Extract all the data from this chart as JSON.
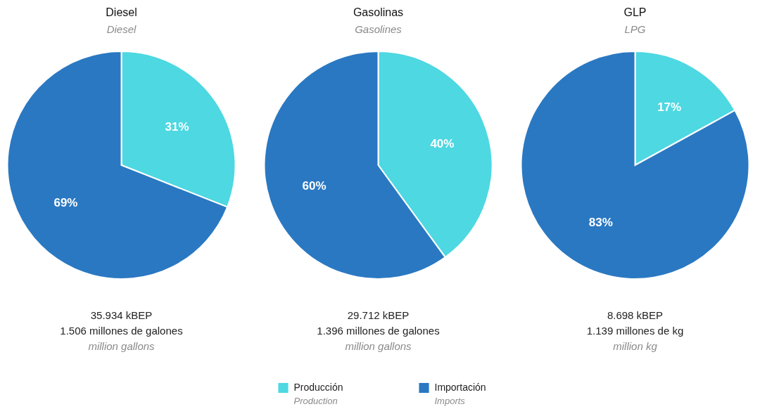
{
  "chart_data": [
    {
      "type": "pie",
      "title": "Diesel",
      "subtitle": "Diesel",
      "categories": [
        "Producción\nProduction",
        "Importación\nImports"
      ],
      "values": [
        31,
        69
      ],
      "colors": [
        "#4dd8e2",
        "#2a78c2"
      ],
      "value_labels": [
        "31%",
        "69%"
      ],
      "annotations": [
        "35.934 kBEP",
        "1.506 millones de galones",
        "million gallons"
      ],
      "legend": "bottom"
    },
    {
      "type": "pie",
      "title": "Gasolinas",
      "subtitle": "Gasolines",
      "categories": [
        null,
        null
      ],
      "values": [
        40,
        60
      ],
      "colors": [
        "#4dd8e2",
        "#2a78c2"
      ],
      "value_labels": [
        "40%",
        "60%"
      ],
      "annotations": [
        "29.712 kBEP",
        "1.396 millones de galones",
        "million gallons"
      ]
    },
    {
      "type": "pie",
      "title": "GLP",
      "subtitle": "LPG",
      "categories": [
        null,
        null
      ],
      "values": [
        17,
        83
      ],
      "colors": [
        "#4dd8e2",
        "#2a78c2"
      ],
      "value_labels": [
        "17%",
        "83%"
      ],
      "annotations": [
        "8.698 kBEP",
        "1.139 millones de kg",
        "million kg"
      ]
    }
  ]
}
